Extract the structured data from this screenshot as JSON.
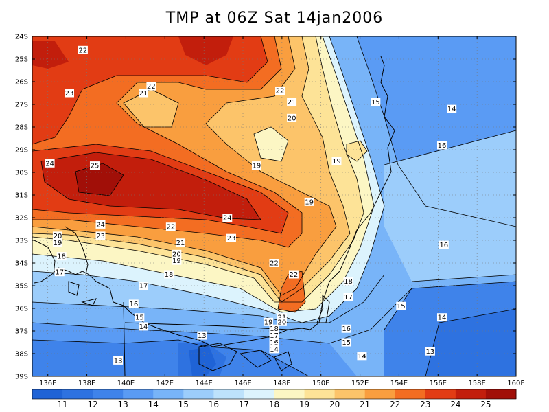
{
  "title": "TMP at 06Z Sat 14jan2006",
  "map": {
    "lat_labels": [
      "24S",
      "25S",
      "26S",
      "27S",
      "28S",
      "29S",
      "30S",
      "31S",
      "32S",
      "33S",
      "34S",
      "35S",
      "36S",
      "37S",
      "38S",
      "39S"
    ],
    "lon_labels": [
      "136E",
      "138E",
      "140E",
      "142E",
      "144E",
      "146E",
      "148E",
      "150E",
      "152E",
      "154E",
      "156E",
      "158E",
      "160E"
    ],
    "lat_range": [
      -39,
      -24
    ],
    "lon_range": [
      135.2,
      160
    ],
    "contour_labels": [
      {
        "text": "22",
        "lon": 137.8,
        "lat": -24.6
      },
      {
        "text": "23",
        "lon": 137.1,
        "lat": -26.5
      },
      {
        "text": "21",
        "lon": 140.9,
        "lat": -26.5
      },
      {
        "text": "22",
        "lon": 141.3,
        "lat": -26.2
      },
      {
        "text": "22",
        "lon": 147.9,
        "lat": -26.4
      },
      {
        "text": "21",
        "lon": 148.5,
        "lat": -26.9
      },
      {
        "text": "20",
        "lon": 148.5,
        "lat": -27.6
      },
      {
        "text": "15",
        "lon": 152.8,
        "lat": -26.9
      },
      {
        "text": "14",
        "lon": 156.7,
        "lat": -27.2
      },
      {
        "text": "16",
        "lon": 156.2,
        "lat": -28.8
      },
      {
        "text": "19",
        "lon": 146.7,
        "lat": -29.7
      },
      {
        "text": "19",
        "lon": 150.8,
        "lat": -29.5
      },
      {
        "text": "24",
        "lon": 136.1,
        "lat": -29.6
      },
      {
        "text": "25",
        "lon": 138.4,
        "lat": -29.7
      },
      {
        "text": "19",
        "lon": 149.4,
        "lat": -31.3
      },
      {
        "text": "24",
        "lon": 145.2,
        "lat": -32.0
      },
      {
        "text": "24",
        "lon": 138.7,
        "lat": -32.3
      },
      {
        "text": "22",
        "lon": 142.3,
        "lat": -32.4
      },
      {
        "text": "23",
        "lon": 138.7,
        "lat": -32.8
      },
      {
        "text": "23",
        "lon": 145.4,
        "lat": -32.9
      },
      {
        "text": "20",
        "lon": 136.5,
        "lat": -32.8
      },
      {
        "text": "19",
        "lon": 136.5,
        "lat": -33.1
      },
      {
        "text": "21",
        "lon": 142.8,
        "lat": -33.1
      },
      {
        "text": "16",
        "lon": 156.3,
        "lat": -33.2
      },
      {
        "text": "18",
        "lon": 136.7,
        "lat": -33.7
      },
      {
        "text": "20",
        "lon": 142.6,
        "lat": -33.6
      },
      {
        "text": "19",
        "lon": 142.6,
        "lat": -33.9
      },
      {
        "text": "22",
        "lon": 147.6,
        "lat": -34.0
      },
      {
        "text": "17",
        "lon": 136.6,
        "lat": -34.4
      },
      {
        "text": "18",
        "lon": 142.2,
        "lat": -34.5
      },
      {
        "text": "22",
        "lon": 148.6,
        "lat": -34.5
      },
      {
        "text": "18",
        "lon": 151.4,
        "lat": -34.8
      },
      {
        "text": "17",
        "lon": 140.9,
        "lat": -35.0
      },
      {
        "text": "17",
        "lon": 151.4,
        "lat": -35.5
      },
      {
        "text": "16",
        "lon": 140.4,
        "lat": -35.8
      },
      {
        "text": "15",
        "lon": 154.1,
        "lat": -35.9
      },
      {
        "text": "15",
        "lon": 140.7,
        "lat": -36.4
      },
      {
        "text": "21",
        "lon": 148.0,
        "lat": -36.4
      },
      {
        "text": "20",
        "lon": 148.0,
        "lat": -36.6
      },
      {
        "text": "19",
        "lon": 147.3,
        "lat": -36.6
      },
      {
        "text": "14",
        "lon": 156.2,
        "lat": -36.4
      },
      {
        "text": "14",
        "lon": 140.9,
        "lat": -36.8
      },
      {
        "text": "18",
        "lon": 147.6,
        "lat": -36.9
      },
      {
        "text": "16",
        "lon": 151.3,
        "lat": -36.9
      },
      {
        "text": "13",
        "lon": 143.9,
        "lat": -37.2
      },
      {
        "text": "17",
        "lon": 147.6,
        "lat": -37.2
      },
      {
        "text": "16",
        "lon": 147.6,
        "lat": -37.5
      },
      {
        "text": "15",
        "lon": 147.6,
        "lat": -37.7
      },
      {
        "text": "14",
        "lon": 147.6,
        "lat": -37.8
      },
      {
        "text": "15",
        "lon": 151.3,
        "lat": -37.5
      },
      {
        "text": "13",
        "lon": 155.6,
        "lat": -37.9
      },
      {
        "text": "14",
        "lon": 152.1,
        "lat": -38.1
      },
      {
        "text": "13",
        "lon": 139.6,
        "lat": -38.3
      }
    ]
  },
  "colorbar": {
    "levels": [
      "11",
      "12",
      "13",
      "14",
      "15",
      "16",
      "17",
      "18",
      "19",
      "20",
      "21",
      "22",
      "23",
      "24",
      "25"
    ],
    "colors": [
      "#1f63d6",
      "#2e72e0",
      "#3f83ea",
      "#5a9bf4",
      "#78b4f8",
      "#9ccdfb",
      "#bde2fc",
      "#dcf3fd",
      "#fcf6c4",
      "#fde397",
      "#fcc46a",
      "#f99e3f",
      "#f36d22",
      "#e23c14",
      "#c21e0c",
      "#a10f08"
    ]
  }
}
